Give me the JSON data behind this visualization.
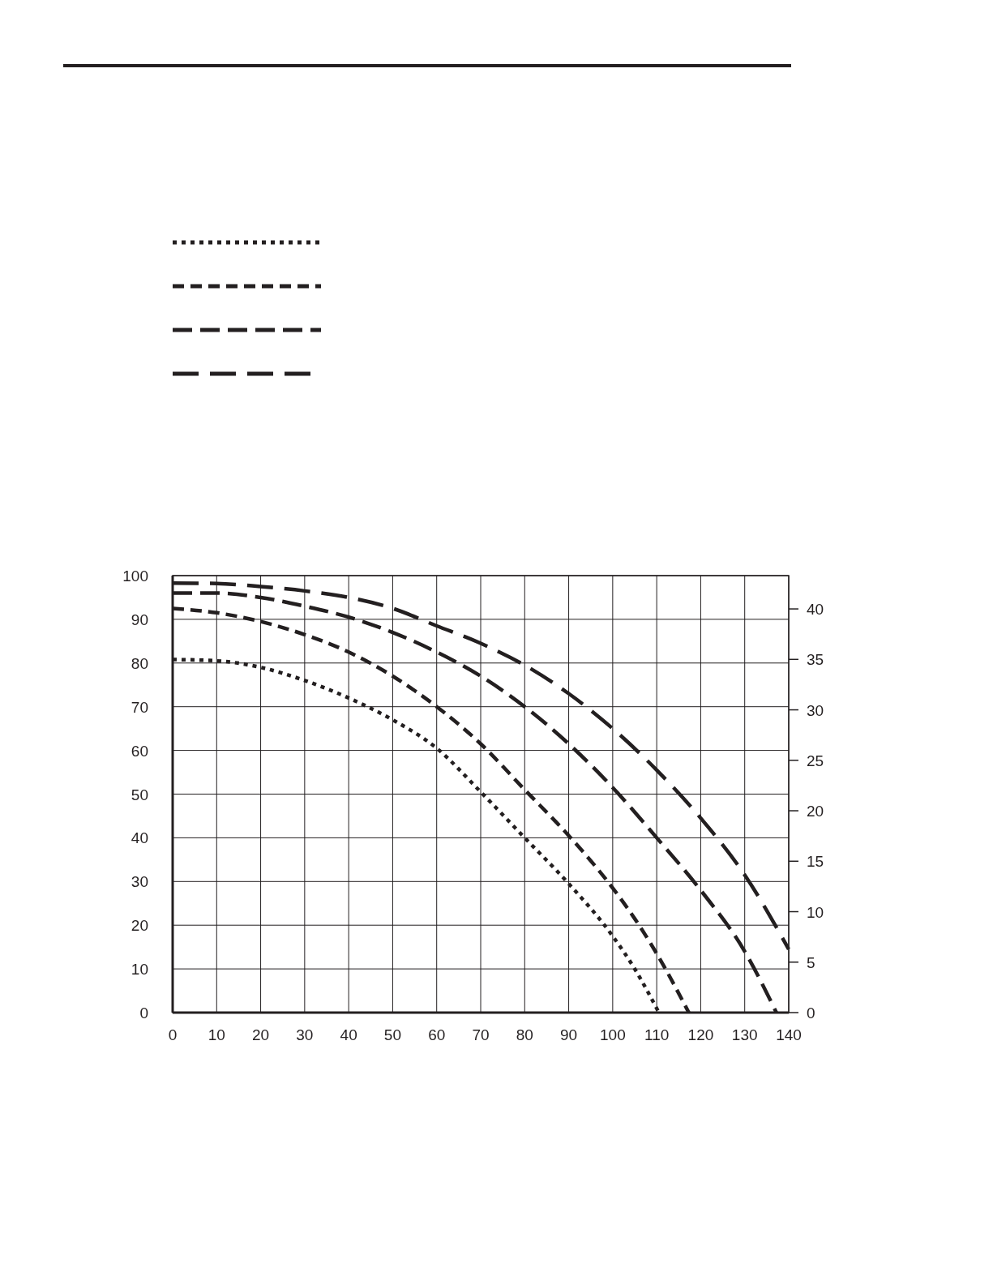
{
  "chart_data": {
    "type": "line",
    "xlim": [
      0,
      140
    ],
    "xticks": [
      0,
      10,
      20,
      30,
      40,
      50,
      60,
      70,
      80,
      90,
      100,
      110,
      120,
      130,
      140
    ],
    "ylim": [
      0,
      100
    ],
    "yticks": [
      0,
      10,
      20,
      30,
      40,
      50,
      60,
      70,
      80,
      90,
      100
    ],
    "y2lim": [
      0,
      43.3
    ],
    "y2ticks": [
      0,
      5,
      10,
      15,
      20,
      25,
      30,
      35,
      40
    ],
    "grid": true,
    "marker": "none",
    "series": [
      {
        "color": "#231f20",
        "line_style": "dotted",
        "x": [
          0,
          10,
          20,
          30,
          40,
          50,
          60,
          70,
          80,
          90,
          100,
          105,
          110.5
        ],
        "values": [
          80.8,
          80.5,
          79,
          76,
          72,
          67,
          60.5,
          50.5,
          40,
          29.5,
          17.5,
          10,
          0
        ]
      },
      {
        "color": "#231f20",
        "line_style": "dashed",
        "x": [
          0,
          10,
          20,
          30,
          40,
          50,
          60,
          70,
          80,
          90,
          100,
          105,
          110,
          117.3
        ],
        "values": [
          92.5,
          91.5,
          89.5,
          86.5,
          82.5,
          77,
          70,
          61.5,
          51,
          40.5,
          28.5,
          21.5,
          13.5,
          0
        ]
      },
      {
        "color": "#231f20",
        "line_style": "dashed",
        "x": [
          0,
          10,
          20,
          30,
          40,
          50,
          60,
          70,
          80,
          90,
          100,
          110,
          120,
          130,
          137.2
        ],
        "values": [
          96,
          96,
          95,
          93,
          90.5,
          87,
          82.5,
          77,
          70,
          61.5,
          51.5,
          40,
          28,
          14,
          0
        ]
      },
      {
        "color": "#231f20",
        "line_style": "dashed",
        "x": [
          0,
          10,
          20,
          30,
          40,
          50,
          60,
          70,
          80,
          90,
          100,
          110,
          120,
          130,
          140
        ],
        "values": [
          98.3,
          98.2,
          97.5,
          96.5,
          95,
          92.5,
          88.5,
          84.5,
          79.5,
          73,
          65,
          55.5,
          44.5,
          31.5,
          14.5
        ]
      }
    ]
  }
}
